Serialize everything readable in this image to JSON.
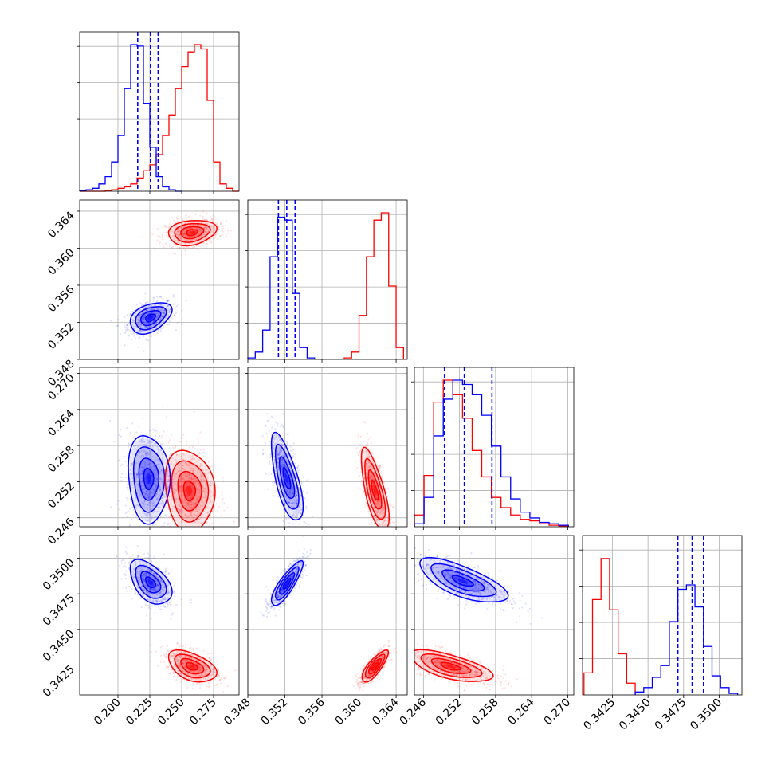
{
  "chart_data": {
    "type": "corner",
    "series": [
      {
        "name": "blue",
        "color": "#0000ff"
      },
      {
        "name": "red",
        "color": "#ff0000"
      }
    ],
    "parameters": [
      {
        "range": [
          0.17,
          0.295
        ],
        "ticks": [
          "0.200",
          "0.225",
          "0.250",
          "0.275"
        ],
        "tick_values": [
          0.2,
          0.225,
          0.25,
          0.275
        ]
      },
      {
        "range": [
          0.348,
          0.3652
        ],
        "ticks": [
          "0.348",
          "0.352",
          "0.356",
          "0.360",
          "0.364"
        ],
        "tick_values": [
          0.348,
          0.352,
          0.356,
          0.36,
          0.364
        ]
      },
      {
        "range": [
          0.2445,
          0.271
        ],
        "ticks": [
          "0.246",
          "0.252",
          "0.258",
          "0.264",
          "0.270"
        ],
        "tick_values": [
          0.246,
          0.252,
          0.258,
          0.264,
          0.27
        ]
      },
      {
        "range": [
          0.3404,
          0.3516
        ],
        "ticks": [
          "0.3425",
          "0.3450",
          "0.3475",
          "0.3500"
        ],
        "tick_values": [
          0.3425,
          0.345,
          0.3475,
          0.35
        ]
      }
    ],
    "histograms": [
      {
        "param": 0,
        "ymax": 1.0,
        "quantiles": [
          0.2155,
          0.2255,
          0.2315
        ],
        "blue": {
          "edges": [
            0.17,
            0.175,
            0.18,
            0.185,
            0.19,
            0.195,
            0.2,
            0.205,
            0.21,
            0.215,
            0.22,
            0.225,
            0.23,
            0.235,
            0.24,
            0.245,
            0.25
          ],
          "counts": [
            0.005,
            0.01,
            0.02,
            0.05,
            0.1,
            0.2,
            0.38,
            0.7,
            1.0,
            0.99,
            0.6,
            0.3,
            0.1,
            0.03,
            0.01,
            0.0
          ]
        },
        "red": {
          "edges": [
            0.17,
            0.175,
            0.18,
            0.185,
            0.19,
            0.195,
            0.2,
            0.205,
            0.21,
            0.215,
            0.22,
            0.225,
            0.23,
            0.235,
            0.24,
            0.245,
            0.25,
            0.255,
            0.26,
            0.265,
            0.27,
            0.275,
            0.28,
            0.285,
            0.29,
            0.295
          ],
          "counts": [
            0.0,
            0.0,
            0.0,
            0.0,
            0.005,
            0.01,
            0.02,
            0.03,
            0.05,
            0.09,
            0.14,
            0.18,
            0.25,
            0.38,
            0.52,
            0.7,
            0.85,
            0.95,
            1.0,
            0.97,
            0.62,
            0.2,
            0.05,
            0.02,
            0.0
          ]
        }
      },
      {
        "param": 1,
        "ymax": 1.0,
        "quantiles": [
          0.3513,
          0.3522,
          0.3531
        ],
        "blue": {
          "edges": [
            0.348,
            0.3488,
            0.3496,
            0.3504,
            0.3512,
            0.352,
            0.3528,
            0.3536,
            0.3544,
            0.3552
          ],
          "counts": [
            0.01,
            0.05,
            0.2,
            0.7,
            0.97,
            0.95,
            0.45,
            0.08,
            0.01
          ]
        },
        "red": {
          "edges": [
            0.3584,
            0.3592,
            0.36,
            0.3608,
            0.3616,
            0.3624,
            0.3632,
            0.364,
            0.3648
          ],
          "counts": [
            0.01,
            0.05,
            0.3,
            0.7,
            0.95,
            1.0,
            0.5,
            0.08
          ]
        }
      },
      {
        "param": 2,
        "ymax": 1.0,
        "quantiles": [
          0.2495,
          0.2528,
          0.2574
        ],
        "blue": {
          "edges": [
            0.2445,
            0.2461,
            0.2477,
            0.2493,
            0.2509,
            0.2525,
            0.2541,
            0.2557,
            0.2573,
            0.2589,
            0.2605,
            0.2621,
            0.2637,
            0.2653,
            0.2669,
            0.2685,
            0.2701
          ],
          "counts": [
            0.02,
            0.2,
            0.62,
            0.87,
            1.0,
            0.97,
            0.9,
            0.76,
            0.55,
            0.34,
            0.19,
            0.1,
            0.06,
            0.03,
            0.02,
            0.01
          ]
        },
        "red": {
          "edges": [
            0.2445,
            0.2461,
            0.2477,
            0.2493,
            0.2509,
            0.2525,
            0.2541,
            0.2557,
            0.2573,
            0.2589,
            0.2605,
            0.2621,
            0.2637,
            0.2653,
            0.2669,
            0.2685,
            0.2701
          ],
          "counts": [
            0.08,
            0.35,
            0.85,
            1.0,
            0.9,
            0.74,
            0.52,
            0.34,
            0.2,
            0.13,
            0.08,
            0.05,
            0.04,
            0.02,
            0.01,
            0.005
          ]
        }
      },
      {
        "param": 3,
        "ymax": 1.0,
        "quantiles": [
          0.3471,
          0.3481,
          0.3489
        ],
        "blue": {
          "edges": [
            0.3441,
            0.3447,
            0.3453,
            0.3459,
            0.3465,
            0.3471,
            0.3477,
            0.3483,
            0.3489,
            0.3495,
            0.3501,
            0.3507,
            0.3513
          ],
          "counts": [
            0.02,
            0.05,
            0.12,
            0.2,
            0.5,
            0.72,
            0.75,
            0.6,
            0.33,
            0.13,
            0.05,
            0.01
          ]
        },
        "red": {
          "edges": [
            0.3405,
            0.3411,
            0.3417,
            0.3423,
            0.3429,
            0.3435,
            0.3441
          ],
          "counts": [
            0.15,
            0.65,
            0.93,
            0.58,
            0.28,
            0.08
          ]
        }
      }
    ],
    "panels": [
      {
        "row": 1,
        "col": 0,
        "blue": {
          "center": [
            0.2255,
            0.3525
          ],
          "cov": [
            [
              6e-05,
              2.5e-06
            ],
            [
              2.5e-06,
              6.4e-07
            ]
          ]
        },
        "red": {
          "center": [
            0.258,
            0.3617
          ],
          "cov": [
            [
              8e-05,
              1.2e-06
            ],
            [
              1.2e-06,
              4.2e-07
            ]
          ]
        }
      },
      {
        "row": 2,
        "col": 0,
        "blue": {
          "center": [
            0.224,
            0.2525
          ],
          "cov": [
            [
              6e-05,
              -2.5e-06
            ],
            [
              -2.5e-06,
              1.2e-05
            ]
          ]
        },
        "red": {
          "center": [
            0.256,
            0.2505
          ],
          "cov": [
            [
              8.5e-05,
              -3.5e-06
            ],
            [
              -3.5e-06,
              1.05e-05
            ]
          ]
        }
      },
      {
        "row": 2,
        "col": 1,
        "blue": {
          "center": [
            0.3522,
            0.2525
          ],
          "cov": [
            [
              6.5e-07,
              -1.9e-06
            ],
            [
              -1.9e-06,
              1.2e-05
            ]
          ]
        },
        "red": {
          "center": [
            0.3617,
            0.2505
          ],
          "cov": [
            [
              5e-07,
              -1.6e-06
            ],
            [
              -1.6e-06,
              1.05e-05
            ]
          ]
        }
      },
      {
        "row": 3,
        "col": 0,
        "blue": {
          "center": [
            0.2255,
            0.3483
          ],
          "cov": [
            [
              6e-05,
              -2.8e-06
            ],
            [
              -2.8e-06,
              5.5e-07
            ]
          ]
        },
        "red": {
          "center": [
            0.258,
            0.3424
          ],
          "cov": [
            [
              8e-05,
              -2.2e-06
            ],
            [
              -2.2e-06,
              2.8e-07
            ]
          ]
        }
      },
      {
        "row": 3,
        "col": 1,
        "blue": {
          "center": [
            0.3522,
            0.3482
          ],
          "cov": [
            [
              6.5e-07,
              5e-07
            ],
            [
              5e-07,
              5.5e-07
            ]
          ]
        },
        "red": {
          "center": [
            0.3617,
            0.3424
          ],
          "cov": [
            [
              4.5e-07,
              2.8e-07
            ],
            [
              2.8e-07,
              2.8e-07
            ]
          ]
        }
      },
      {
        "row": 3,
        "col": 2,
        "blue": {
          "center": [
            0.2525,
            0.3484
          ],
          "cov": [
            [
              1.2e-05,
              -1.8e-06
            ],
            [
              -1.8e-06,
              5.5e-07
            ]
          ]
        },
        "red": {
          "center": [
            0.2505,
            0.3424
          ],
          "cov": [
            [
              1.05e-05,
              -1.1e-06
            ],
            [
              -1.1e-06,
              2.8e-07
            ]
          ]
        }
      }
    ]
  }
}
